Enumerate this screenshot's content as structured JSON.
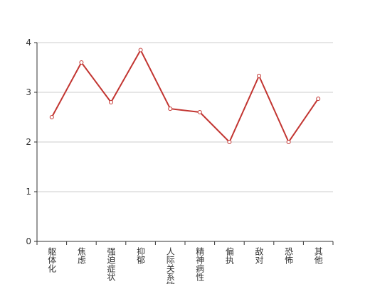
{
  "chart_data": {
    "type": "line",
    "categories": [
      "躯体化",
      "焦虑",
      "强迫症状",
      "抑郁",
      "人际关系敏感",
      "精神病性",
      "偏执",
      "敌对",
      "恐怖",
      "其他"
    ],
    "values": [
      2.5,
      3.6,
      2.8,
      3.85,
      2.67,
      2.6,
      2.0,
      3.33,
      2.0,
      2.87
    ],
    "color": "#c23531",
    "ylim": [
      0,
      4
    ],
    "yticks": [
      0,
      1,
      2,
      3,
      4
    ],
    "grid": true
  }
}
